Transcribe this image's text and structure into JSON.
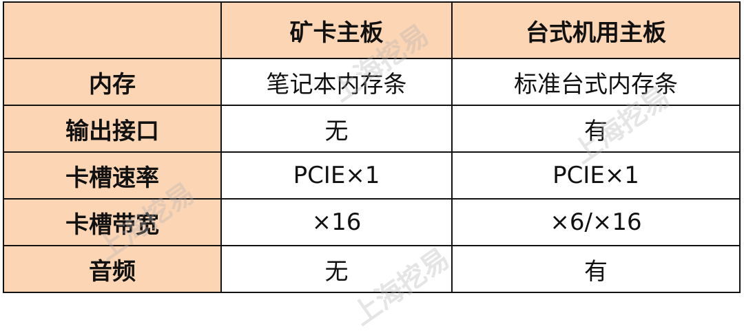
{
  "table": {
    "headers": [
      "",
      "矿卡主板",
      "台式机用主板"
    ],
    "rows": [
      {
        "label": "内存",
        "cells": [
          "笔记本内存条",
          "标准台式内存条"
        ]
      },
      {
        "label": "输出接口",
        "cells": [
          "无",
          "有"
        ]
      },
      {
        "label": "卡槽速率",
        "cells": [
          "PCIE×1",
          "PCIE×1"
        ]
      },
      {
        "label": "卡槽带宽",
        "cells": [
          "×16",
          "×6/×16"
        ]
      },
      {
        "label": "音频",
        "cells": [
          "无",
          "有"
        ]
      }
    ]
  },
  "watermark": "上海挖易",
  "colors": {
    "header_bg": "#fcd5b4",
    "border": "#111111"
  }
}
